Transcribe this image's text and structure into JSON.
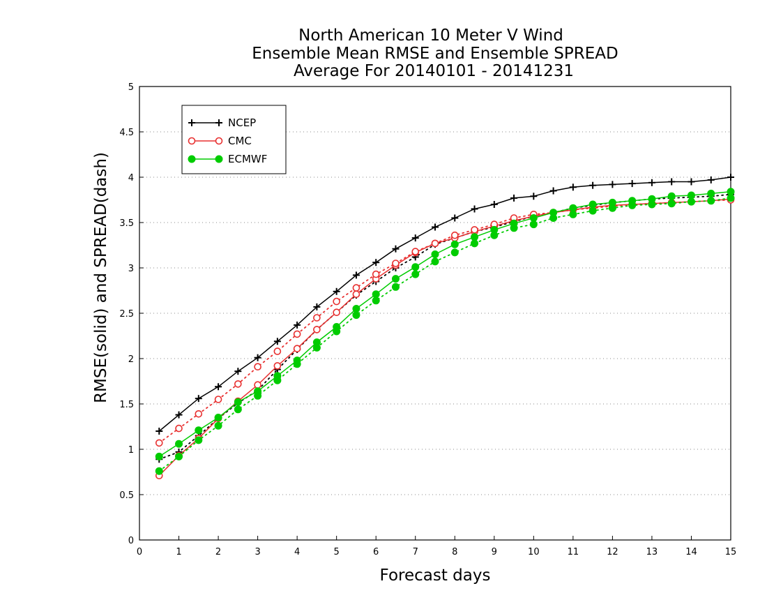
{
  "chart_data": {
    "type": "line",
    "title_lines": [
      "North American 10 Meter V Wind",
      "Ensemble Mean RMSE and Ensemble SPREAD",
      "Average For 20140101 - 20141231"
    ],
    "xlabel": "Forecast days",
    "ylabel": "RMSE(solid) and SPREAD(dash)",
    "xlim": [
      0,
      15
    ],
    "ylim": [
      0,
      5
    ],
    "xticks": [
      "0",
      "1",
      "2",
      "3",
      "4",
      "5",
      "6",
      "7",
      "8",
      "9",
      "10",
      "11",
      "12",
      "13",
      "14",
      "15"
    ],
    "yticks": [
      "0",
      "0.5",
      "1",
      "1.5",
      "2",
      "2.5",
      "3",
      "3.5",
      "4",
      "4.5",
      "5"
    ],
    "grid": true,
    "legend_position": "top-left",
    "x": [
      0.5,
      1,
      1.5,
      2,
      2.5,
      3,
      3.5,
      4,
      4.5,
      5,
      5.5,
      6,
      6.5,
      7,
      7.5,
      8,
      8.5,
      9,
      9.5,
      10,
      10.5,
      11,
      11.5,
      12,
      12.5,
      13,
      13.5,
      14,
      14.5,
      15
    ],
    "series": [
      {
        "name": "NCEP",
        "color": "#000000",
        "marker": "plus",
        "rmse": [
          1.2,
          1.38,
          1.56,
          1.69,
          1.86,
          2.01,
          2.19,
          2.37,
          2.57,
          2.74,
          2.92,
          3.06,
          3.21,
          3.33,
          3.45,
          3.55,
          3.65,
          3.7,
          3.77,
          3.79,
          3.85,
          3.89,
          3.91,
          3.92,
          3.93,
          3.94,
          3.95,
          3.95,
          3.97,
          4.0
        ],
        "spread": [
          0.89,
          0.97,
          1.15,
          1.34,
          1.51,
          1.65,
          1.88,
          2.1,
          2.32,
          2.51,
          2.7,
          2.85,
          3.0,
          3.12,
          3.26,
          3.33,
          3.4,
          3.45,
          3.51,
          3.57,
          3.61,
          3.66,
          3.69,
          3.72,
          3.74,
          3.76,
          3.77,
          3.78,
          3.79,
          3.81
        ]
      },
      {
        "name": "CMC",
        "color": "#e83030",
        "marker": "open-circle",
        "rmse": [
          0.71,
          0.93,
          1.12,
          1.34,
          1.53,
          1.71,
          1.92,
          2.11,
          2.32,
          2.51,
          2.71,
          2.88,
          3.03,
          3.17,
          3.27,
          3.33,
          3.4,
          3.46,
          3.52,
          3.57,
          3.61,
          3.64,
          3.67,
          3.69,
          3.7,
          3.71,
          3.72,
          3.73,
          3.74,
          3.76
        ],
        "spread": [
          1.07,
          1.23,
          1.39,
          1.55,
          1.72,
          1.91,
          2.08,
          2.27,
          2.45,
          2.63,
          2.78,
          2.93,
          3.05,
          3.18,
          3.27,
          3.36,
          3.42,
          3.48,
          3.55,
          3.59,
          3.61,
          3.64,
          3.66,
          3.68,
          3.7,
          3.71,
          3.72,
          3.73,
          3.74,
          3.75
        ]
      },
      {
        "name": "ECMWF",
        "color": "#00cc00",
        "marker": "filled-circle",
        "rmse": [
          0.92,
          1.06,
          1.21,
          1.35,
          1.52,
          1.64,
          1.81,
          1.98,
          2.18,
          2.35,
          2.55,
          2.71,
          2.88,
          3.01,
          3.15,
          3.26,
          3.34,
          3.42,
          3.49,
          3.55,
          3.61,
          3.66,
          3.7,
          3.72,
          3.74,
          3.76,
          3.79,
          3.8,
          3.82,
          3.84
        ],
        "spread": [
          0.76,
          0.92,
          1.1,
          1.26,
          1.44,
          1.59,
          1.76,
          1.94,
          2.12,
          2.3,
          2.48,
          2.64,
          2.79,
          2.93,
          3.07,
          3.17,
          3.27,
          3.36,
          3.44,
          3.48,
          3.55,
          3.59,
          3.63,
          3.66,
          3.69,
          3.7,
          3.71,
          3.73,
          3.74,
          3.77
        ]
      }
    ]
  }
}
